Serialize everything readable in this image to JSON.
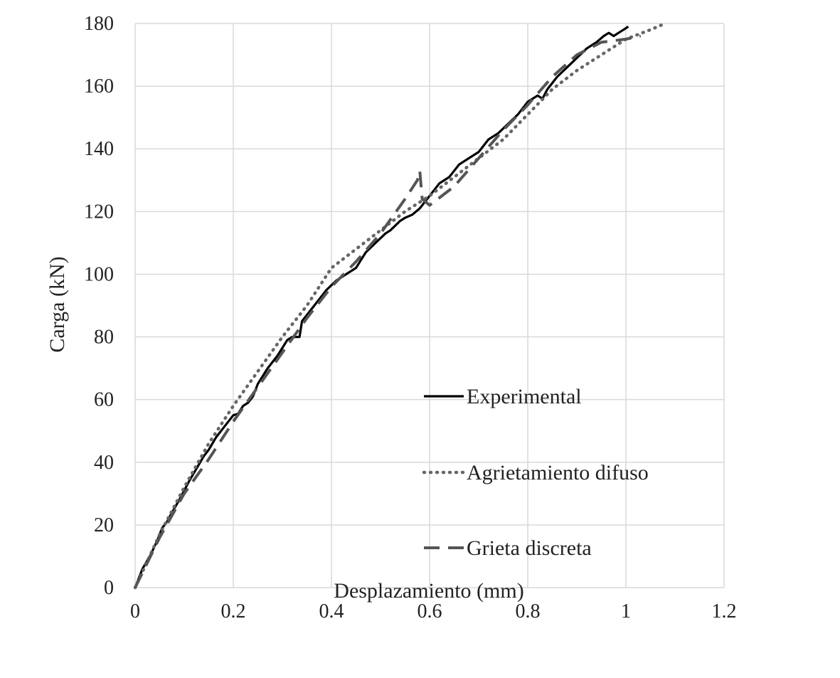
{
  "chart_data": {
    "type": "line",
    "title": "",
    "xlabel": "Desplazamiento (mm)",
    "ylabel": "Carga (kN)",
    "xlim": [
      0,
      1.2
    ],
    "ylim": [
      0,
      180
    ],
    "x_ticks": [
      0,
      0.2,
      0.4,
      0.6,
      0.8,
      1,
      1.2
    ],
    "x_tick_labels": [
      "0",
      "0.2",
      "0.4",
      "0.6",
      "0.8",
      "1",
      "1.2"
    ],
    "y_ticks": [
      0,
      20,
      40,
      60,
      80,
      100,
      120,
      140,
      160,
      180
    ],
    "y_tick_labels": [
      "0",
      "20",
      "40",
      "60",
      "80",
      "100",
      "120",
      "140",
      "160",
      "180"
    ],
    "grid": true,
    "legend_position": "right",
    "series": [
      {
        "name": "Experimental",
        "style": "solid",
        "color": "#000000",
        "x": [
          0,
          0.015,
          0.03,
          0.045,
          0.055,
          0.06,
          0.065,
          0.075,
          0.09,
          0.1,
          0.11,
          0.125,
          0.14,
          0.15,
          0.165,
          0.18,
          0.2,
          0.21,
          0.22,
          0.23,
          0.24,
          0.25,
          0.27,
          0.29,
          0.31,
          0.32,
          0.335,
          0.34,
          0.35,
          0.37,
          0.39,
          0.41,
          0.43,
          0.44,
          0.45,
          0.47,
          0.49,
          0.51,
          0.52,
          0.54,
          0.55,
          0.565,
          0.58,
          0.6,
          0.62,
          0.64,
          0.66,
          0.68,
          0.69,
          0.7,
          0.72,
          0.74,
          0.76,
          0.78,
          0.8,
          0.82,
          0.83,
          0.84,
          0.86,
          0.88,
          0.9,
          0.92,
          0.94,
          0.955,
          0.965,
          0.975,
          0.985,
          0.995,
          1.005
        ],
        "y": [
          0,
          6,
          10,
          15,
          19,
          20,
          21,
          24,
          28,
          31,
          34,
          38,
          42,
          44,
          48,
          51,
          55,
          55.5,
          58,
          59,
          61,
          65,
          70,
          74,
          79,
          80,
          80,
          85,
          87,
          91,
          95,
          98,
          100,
          101,
          102,
          107,
          110,
          113,
          114,
          117,
          118,
          119,
          121,
          125,
          129,
          131,
          135,
          137,
          138,
          139,
          143,
          145,
          148,
          151,
          155,
          157,
          156,
          159,
          163,
          166,
          169,
          172,
          174,
          176,
          177,
          176,
          177,
          178,
          179
        ]
      },
      {
        "name": "Agrietamiento difuso",
        "style": "dotted",
        "color": "#666666",
        "x": [
          0,
          0.05,
          0.1,
          0.15,
          0.2,
          0.25,
          0.3,
          0.35,
          0.4,
          0.45,
          0.5,
          0.55,
          0.6,
          0.65,
          0.7,
          0.75,
          0.8,
          0.85,
          0.9,
          0.95,
          1.0,
          1.05,
          1.08
        ],
        "y": [
          0,
          17,
          32,
          46,
          58,
          69,
          80,
          90,
          102,
          108,
          114,
          120,
          125,
          131,
          137,
          143,
          151,
          159,
          165,
          170,
          175,
          178,
          180
        ]
      },
      {
        "name": "Grieta discreta",
        "style": "dashed",
        "color": "#555555",
        "x": [
          0,
          0.05,
          0.1,
          0.15,
          0.2,
          0.25,
          0.3,
          0.35,
          0.4,
          0.45,
          0.5,
          0.55,
          0.575,
          0.58,
          0.585,
          0.6,
          0.65,
          0.7,
          0.75,
          0.8,
          0.85,
          0.9,
          0.95,
          1.0,
          1.03
        ],
        "y": [
          0,
          16,
          30,
          41,
          53,
          64,
          75,
          86,
          96,
          104,
          113,
          124,
          130,
          133,
          124,
          122,
          128,
          137,
          146,
          154,
          163,
          170,
          174,
          175,
          176
        ]
      }
    ]
  }
}
